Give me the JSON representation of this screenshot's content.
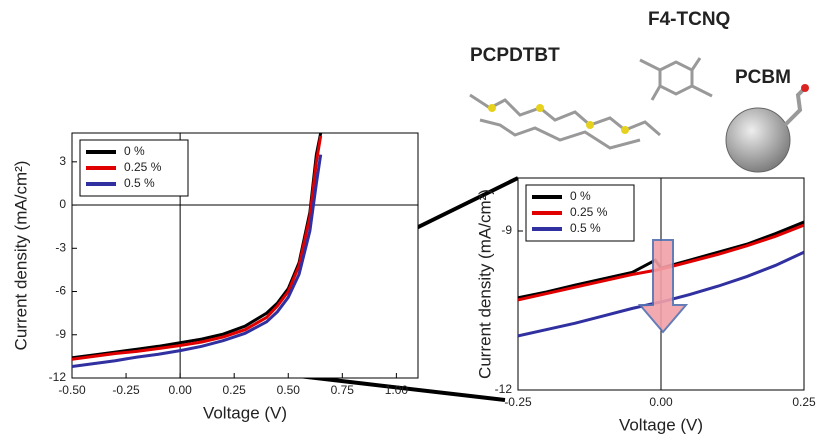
{
  "molecules": [
    "PCPDTBT",
    "F4-TCNQ",
    "PCBM"
  ],
  "chart_data": [
    {
      "type": "line",
      "xlabel": "Voltage (V)",
      "ylabel": "Current density (mA/cm²)",
      "x": [
        -0.5,
        -0.4,
        -0.3,
        -0.2,
        -0.1,
        0,
        0.1,
        0.2,
        0.3,
        0.4,
        0.45,
        0.5,
        0.55,
        0.6,
        0.63,
        0.65
      ],
      "series": [
        {
          "name": "0 %",
          "color": "#000000",
          "values": [
            -10.6,
            -10.4,
            -10.2,
            -10.0,
            -9.8,
            -9.55,
            -9.3,
            -8.95,
            -8.4,
            -7.5,
            -6.8,
            -5.8,
            -4.0,
            -0.5,
            3.5,
            5
          ]
        },
        {
          "name": "0.25 %",
          "color": "#e00000",
          "values": [
            -10.7,
            -10.5,
            -10.3,
            -10.15,
            -9.95,
            -9.75,
            -9.5,
            -9.15,
            -8.65,
            -7.8,
            -7.0,
            -6.0,
            -4.2,
            -0.8,
            3.0,
            4.8
          ]
        },
        {
          "name": "0.5 %",
          "color": "#3030a0",
          "values": [
            -11.2,
            -11.0,
            -10.8,
            -10.55,
            -10.35,
            -10.1,
            -9.8,
            -9.4,
            -8.9,
            -8.1,
            -7.4,
            -6.4,
            -4.8,
            -1.8,
            1.5,
            3.5
          ]
        }
      ],
      "xlim": [
        -0.5,
        1.1
      ],
      "ylim": [
        -12,
        5
      ],
      "xticks": [
        {
          "value": -0.5,
          "label": "-0.50"
        },
        -0.25,
        {
          "value": 0,
          "label": "0.00"
        },
        0.25,
        {
          "value": 0.5,
          "label": "0.50"
        },
        0.75,
        {
          "value": 1,
          "label": "1.00"
        }
      ],
      "yticks": [
        3,
        0,
        -3,
        -6,
        -9,
        -12
      ],
      "zero_lines": true,
      "legend": "upper-left"
    },
    {
      "type": "line",
      "xlabel": "Voltage (V)",
      "ylabel": "Current density (mA/cm²)",
      "x": [
        -0.25,
        -0.2,
        -0.15,
        -0.1,
        -0.05,
        -0.01,
        0,
        0.05,
        0.1,
        0.15,
        0.2,
        0.25
      ],
      "series": [
        {
          "name": "0 %",
          "color": "#000000",
          "values": [
            -10.26,
            -10.15,
            -10.02,
            -9.9,
            -9.78,
            -9.55,
            -9.7,
            -9.55,
            -9.4,
            -9.25,
            -9.05,
            -8.83
          ]
        },
        {
          "name": "0.25 %",
          "color": "#e00000",
          "values": [
            -10.3,
            -10.18,
            -10.06,
            -9.94,
            -9.82,
            -9.74,
            -9.72,
            -9.58,
            -9.44,
            -9.28,
            -9.1,
            -8.89
          ]
        },
        {
          "name": "0.5 %",
          "color": "#3030a0",
          "values": [
            -10.98,
            -10.86,
            -10.74,
            -10.6,
            -10.46,
            -10.36,
            -10.34,
            -10.2,
            -10.04,
            -9.86,
            -9.65,
            -9.4
          ]
        }
      ],
      "xlim": [
        -0.25,
        0.25
      ],
      "ylim": [
        -12,
        -8
      ],
      "xticks": [
        -0.25,
        {
          "value": 0,
          "label": "0.00"
        },
        0.25
      ],
      "yticks": [
        -9,
        -12
      ],
      "zero_lines": true,
      "legend": "upper-left"
    }
  ]
}
